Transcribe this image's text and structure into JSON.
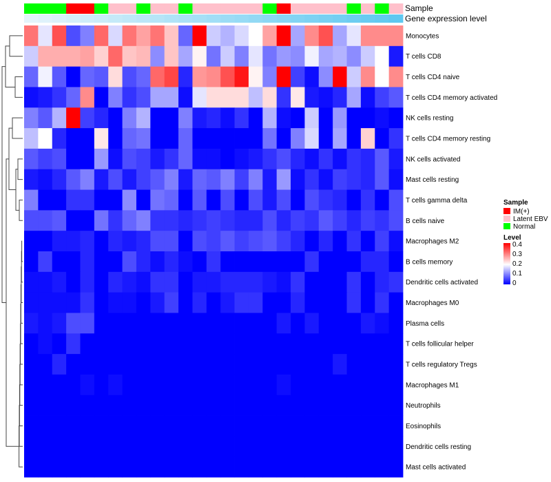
{
  "chart_data": {
    "type": "heatmap",
    "annotation_labels": [
      "Sample",
      "Gene expression level"
    ],
    "sample_groups": [
      "Normal",
      "Normal",
      "Normal",
      "IM(+)",
      "IM(+)",
      "Normal",
      "Latent EBV",
      "Latent EBV",
      "Normal",
      "Latent EBV",
      "Latent EBV",
      "Normal",
      "Latent EBV",
      "Latent EBV",
      "Latent EBV",
      "Latent EBV",
      "Latent EBV",
      "Normal",
      "IM(+)",
      "Latent EBV",
      "Latent EBV",
      "Latent EBV",
      "Latent EBV",
      "Normal",
      "Latent EBV",
      "Normal",
      "Latent EBV"
    ],
    "gene_expression": [
      0.02,
      0.04,
      0.06,
      0.08,
      0.1,
      0.12,
      0.14,
      0.16,
      0.18,
      0.2,
      0.22,
      0.24,
      0.26,
      0.28,
      0.3,
      0.32,
      0.34,
      0.36,
      0.38,
      0.4,
      0.42,
      0.44,
      0.46,
      0.48,
      0.5,
      0.52,
      0.54
    ],
    "rows": [
      "Monocytes",
      "T cells CD8",
      "T cells CD4 naive",
      "T cells CD4 memory activated",
      "NK cells resting",
      "T cells CD4 memory resting",
      "NK cells activated",
      "Mast cells resting",
      "T cells gamma delta",
      "B cells naive",
      "Macrophages M2",
      "B cells memory",
      "Dendritic cells activated",
      "Macrophages M0",
      "Plasma cells",
      "T cells follicular helper",
      "T cells regulatory  Tregs",
      "Macrophages M1",
      "Neutrophils",
      "Eosinophils",
      "Dendritic cells resting",
      "Mast cells activated"
    ],
    "values": [
      [
        0.32,
        0.18,
        0.35,
        0.06,
        0.1,
        0.33,
        0.17,
        0.32,
        0.28,
        0.32,
        0.25,
        0.08,
        0.42,
        0.16,
        0.14,
        0.17,
        0.2,
        0.28,
        0.42,
        0.13,
        0.3,
        0.35,
        0.13,
        0.18,
        0.3,
        0.3,
        0.3
      ],
      [
        0.16,
        0.27,
        0.27,
        0.27,
        0.28,
        0.24,
        0.33,
        0.25,
        0.26,
        0.11,
        0.25,
        0.13,
        0.21,
        0.09,
        0.16,
        0.1,
        0.18,
        0.09,
        0.12,
        0.11,
        0.19,
        0.13,
        0.14,
        0.11,
        0.16,
        0.2,
        0.02
      ],
      [
        0.08,
        0.19,
        0.07,
        0.0,
        0.08,
        0.07,
        0.23,
        0.06,
        0.08,
        0.33,
        0.36,
        0.03,
        0.29,
        0.3,
        0.35,
        0.4,
        0.21,
        0.1,
        0.42,
        0.05,
        0.01,
        0.11,
        0.42,
        0.16,
        0.3,
        0.2,
        0.3
      ],
      [
        0.01,
        0.02,
        0.04,
        0.08,
        0.3,
        0.0,
        0.1,
        0.04,
        0.06,
        0.13,
        0.13,
        0.01,
        0.18,
        0.23,
        0.23,
        0.23,
        0.15,
        0.23,
        0.04,
        0.22,
        0.02,
        0.01,
        0.03,
        0.13,
        0.01,
        0.05,
        0.07
      ],
      [
        0.1,
        0.07,
        0.14,
        0.42,
        0.05,
        0.03,
        0.0,
        0.1,
        0.14,
        0.0,
        0.0,
        0.1,
        0.02,
        0.03,
        0.01,
        0.04,
        0.0,
        0.14,
        0.01,
        0.0,
        0.16,
        0.0,
        0.12,
        0.0,
        0.0,
        0.01,
        0.0
      ],
      [
        0.15,
        0.2,
        0.03,
        0.0,
        0.0,
        0.22,
        0.0,
        0.08,
        0.09,
        0.0,
        0.0,
        0.08,
        0.0,
        0.0,
        0.0,
        0.0,
        0.0,
        0.09,
        0.0,
        0.1,
        0.17,
        0.0,
        0.13,
        0.0,
        0.24,
        0.0,
        0.04
      ],
      [
        0.07,
        0.05,
        0.06,
        0.0,
        0.0,
        0.12,
        0.01,
        0.06,
        0.05,
        0.02,
        0.04,
        0.08,
        0.01,
        0.01,
        0.0,
        0.01,
        0.02,
        0.04,
        0.06,
        0.03,
        0.01,
        0.04,
        0.01,
        0.04,
        0.03,
        0.07,
        0.02
      ],
      [
        0.02,
        0.01,
        0.03,
        0.07,
        0.1,
        0.02,
        0.06,
        0.02,
        0.05,
        0.07,
        0.1,
        0.02,
        0.08,
        0.07,
        0.1,
        0.05,
        0.1,
        0.02,
        0.12,
        0.01,
        0.04,
        0.01,
        0.05,
        0.04,
        0.03,
        0.07,
        0.01
      ],
      [
        0.1,
        0.0,
        0.0,
        0.04,
        0.04,
        0.0,
        0.0,
        0.11,
        0.0,
        0.09,
        0.08,
        0.0,
        0.07,
        0.0,
        0.06,
        0.0,
        0.06,
        0.02,
        0.06,
        0.0,
        0.06,
        0.04,
        0.03,
        0.0,
        0.04,
        0.0,
        0.06
      ],
      [
        0.06,
        0.06,
        0.07,
        0.0,
        0.0,
        0.09,
        0.04,
        0.08,
        0.1,
        0.04,
        0.04,
        0.03,
        0.04,
        0.05,
        0.04,
        0.03,
        0.03,
        0.06,
        0.03,
        0.05,
        0.04,
        0.07,
        0.05,
        0.03,
        0.05,
        0.04,
        0.06
      ],
      [
        0.0,
        0.0,
        0.02,
        0.02,
        0.03,
        0.0,
        0.03,
        0.02,
        0.03,
        0.06,
        0.06,
        0.0,
        0.06,
        0.05,
        0.07,
        0.05,
        0.06,
        0.07,
        0.05,
        0.03,
        0.0,
        0.03,
        0.0,
        0.04,
        0.0,
        0.05,
        0.01
      ],
      [
        0.0,
        0.05,
        0.0,
        0.0,
        0.03,
        0.0,
        0.0,
        0.06,
        0.03,
        0.01,
        0.03,
        0.01,
        0.0,
        0.04,
        0.0,
        0.0,
        0.0,
        0.0,
        0.0,
        0.0,
        0.04,
        0.0,
        0.0,
        0.0,
        0.03,
        0.03,
        0.0
      ],
      [
        0.01,
        0.01,
        0.02,
        0.0,
        0.03,
        0.0,
        0.03,
        0.02,
        0.01,
        0.04,
        0.04,
        0.0,
        0.02,
        0.02,
        0.03,
        0.03,
        0.03,
        0.02,
        0.01,
        0.04,
        0.0,
        0.0,
        0.0,
        0.04,
        0.0,
        0.03,
        0.04
      ],
      [
        0.01,
        0.01,
        0.01,
        0.01,
        0.04,
        0.0,
        0.01,
        0.01,
        0.0,
        0.02,
        0.05,
        0.0,
        0.03,
        0.0,
        0.02,
        0.04,
        0.04,
        0.0,
        0.0,
        0.03,
        0.0,
        0.0,
        0.0,
        0.04,
        0.0,
        0.04,
        0.0
      ],
      [
        0.02,
        0.01,
        0.02,
        0.06,
        0.06,
        0.0,
        0.0,
        0.0,
        0.0,
        0.0,
        0.0,
        0.0,
        0.0,
        0.0,
        0.0,
        0.0,
        0.0,
        0.0,
        0.02,
        0.0,
        0.02,
        0.0,
        0.0,
        0.0,
        0.02,
        0.01,
        0.0
      ],
      [
        0.0,
        0.01,
        0.0,
        0.04,
        0.0,
        0.0,
        0.0,
        0.0,
        0.0,
        0.0,
        0.0,
        0.0,
        0.0,
        0.0,
        0.0,
        0.0,
        0.0,
        0.0,
        0.0,
        0.0,
        0.0,
        0.0,
        0.0,
        0.0,
        0.0,
        0.0,
        0.0
      ],
      [
        0.0,
        0.0,
        0.03,
        0.0,
        0.0,
        0.0,
        0.0,
        0.0,
        0.0,
        0.0,
        0.0,
        0.0,
        0.0,
        0.0,
        0.0,
        0.0,
        0.0,
        0.0,
        0.0,
        0.0,
        0.0,
        0.0,
        0.02,
        0.0,
        0.0,
        0.0,
        0.0
      ],
      [
        0.0,
        0.0,
        0.0,
        0.0,
        0.01,
        0.0,
        0.01,
        0.0,
        0.0,
        0.0,
        0.0,
        0.0,
        0.0,
        0.0,
        0.0,
        0.0,
        0.0,
        0.0,
        0.01,
        0.0,
        0.0,
        0.0,
        0.0,
        0.0,
        0.0,
        0.0,
        0.0
      ],
      [
        0,
        0,
        0,
        0,
        0,
        0,
        0,
        0,
        0,
        0,
        0,
        0,
        0,
        0,
        0,
        0,
        0,
        0,
        0,
        0,
        0,
        0,
        0,
        0,
        0,
        0,
        0
      ],
      [
        0,
        0,
        0,
        0,
        0,
        0,
        0,
        0,
        0,
        0,
        0,
        0,
        0,
        0,
        0,
        0,
        0,
        0,
        0,
        0,
        0,
        0,
        0,
        0,
        0,
        0,
        0
      ],
      [
        0,
        0,
        0,
        0,
        0,
        0,
        0,
        0,
        0,
        0,
        0,
        0,
        0,
        0,
        0,
        0,
        0,
        0,
        0,
        0,
        0,
        0,
        0,
        0,
        0,
        0,
        0
      ],
      [
        0,
        0,
        0,
        0,
        0,
        0,
        0,
        0,
        0,
        0,
        0,
        0,
        0,
        0,
        0,
        0,
        0,
        0,
        0,
        0,
        0,
        0,
        0,
        0,
        0,
        0,
        0
      ]
    ],
    "legend": {
      "sample_title": "Sample",
      "sample_entries": [
        {
          "name": "IM(+)",
          "color": "#ff0000"
        },
        {
          "name": "Latent EBV",
          "color": "#ffc0cb"
        },
        {
          "name": "Normal",
          "color": "#00ff00"
        }
      ],
      "level_title": "Level",
      "level_ticks": [
        "0.4",
        "0.3",
        "0.2",
        "0.1",
        "0"
      ],
      "level_range": [
        0,
        0.42
      ]
    },
    "colors": {
      "low": "#0000ff",
      "mid": "#ffffff",
      "high": "#ff0000",
      "gene_low": "#e4f4fb",
      "gene_high": "#5ec8f0"
    },
    "dendrogram": true
  }
}
